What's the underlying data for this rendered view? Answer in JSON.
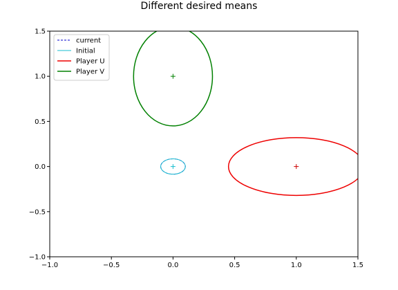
{
  "chart_data": {
    "type": "line",
    "title": "Different desired means",
    "xlabel": "",
    "ylabel": "",
    "xlim": [
      -1.0,
      1.5
    ],
    "ylim": [
      -1.0,
      1.5
    ],
    "x_ticks": [
      -1.0,
      -0.5,
      0.0,
      0.5,
      1.0,
      1.5
    ],
    "x_tick_labels": [
      "−1.0",
      "−0.5",
      "0.0",
      "0.5",
      "1.0",
      "1.5"
    ],
    "y_ticks": [
      -1.0,
      -0.5,
      0.0,
      0.5,
      1.0,
      1.5
    ],
    "y_tick_labels": [
      "−1.0",
      "−0.5",
      "0.0",
      "0.5",
      "1.0",
      "1.5"
    ],
    "grid": false,
    "legend_position": "top-left",
    "series": [
      {
        "name": "current",
        "kind": "ellipse",
        "center": [
          0.0,
          0.0
        ],
        "radii": [
          0.1,
          0.085
        ],
        "color": "#0000cc",
        "dash": true,
        "width": 1
      },
      {
        "name": "Initial",
        "kind": "ellipse",
        "center": [
          0.0,
          0.0
        ],
        "radii": [
          0.1,
          0.085
        ],
        "color": "#17becf",
        "dash": false,
        "width": 1
      },
      {
        "name": "Player U",
        "kind": "ellipse",
        "center": [
          1.0,
          0.0
        ],
        "radii": [
          0.55,
          0.32
        ],
        "color": "#ee0000",
        "dash": false,
        "width": 1.5
      },
      {
        "name": "Player V",
        "kind": "ellipse",
        "center": [
          0.0,
          1.0
        ],
        "radii": [
          0.32,
          0.55
        ],
        "color": "#008000",
        "dash": false,
        "width": 1.5
      }
    ],
    "center_markers": [
      {
        "x": 0.0,
        "y": 0.0,
        "color": "#17becf"
      },
      {
        "x": 1.0,
        "y": 0.0,
        "color": "#cc0000"
      },
      {
        "x": 0.0,
        "y": 1.0,
        "color": "#008000"
      }
    ]
  }
}
